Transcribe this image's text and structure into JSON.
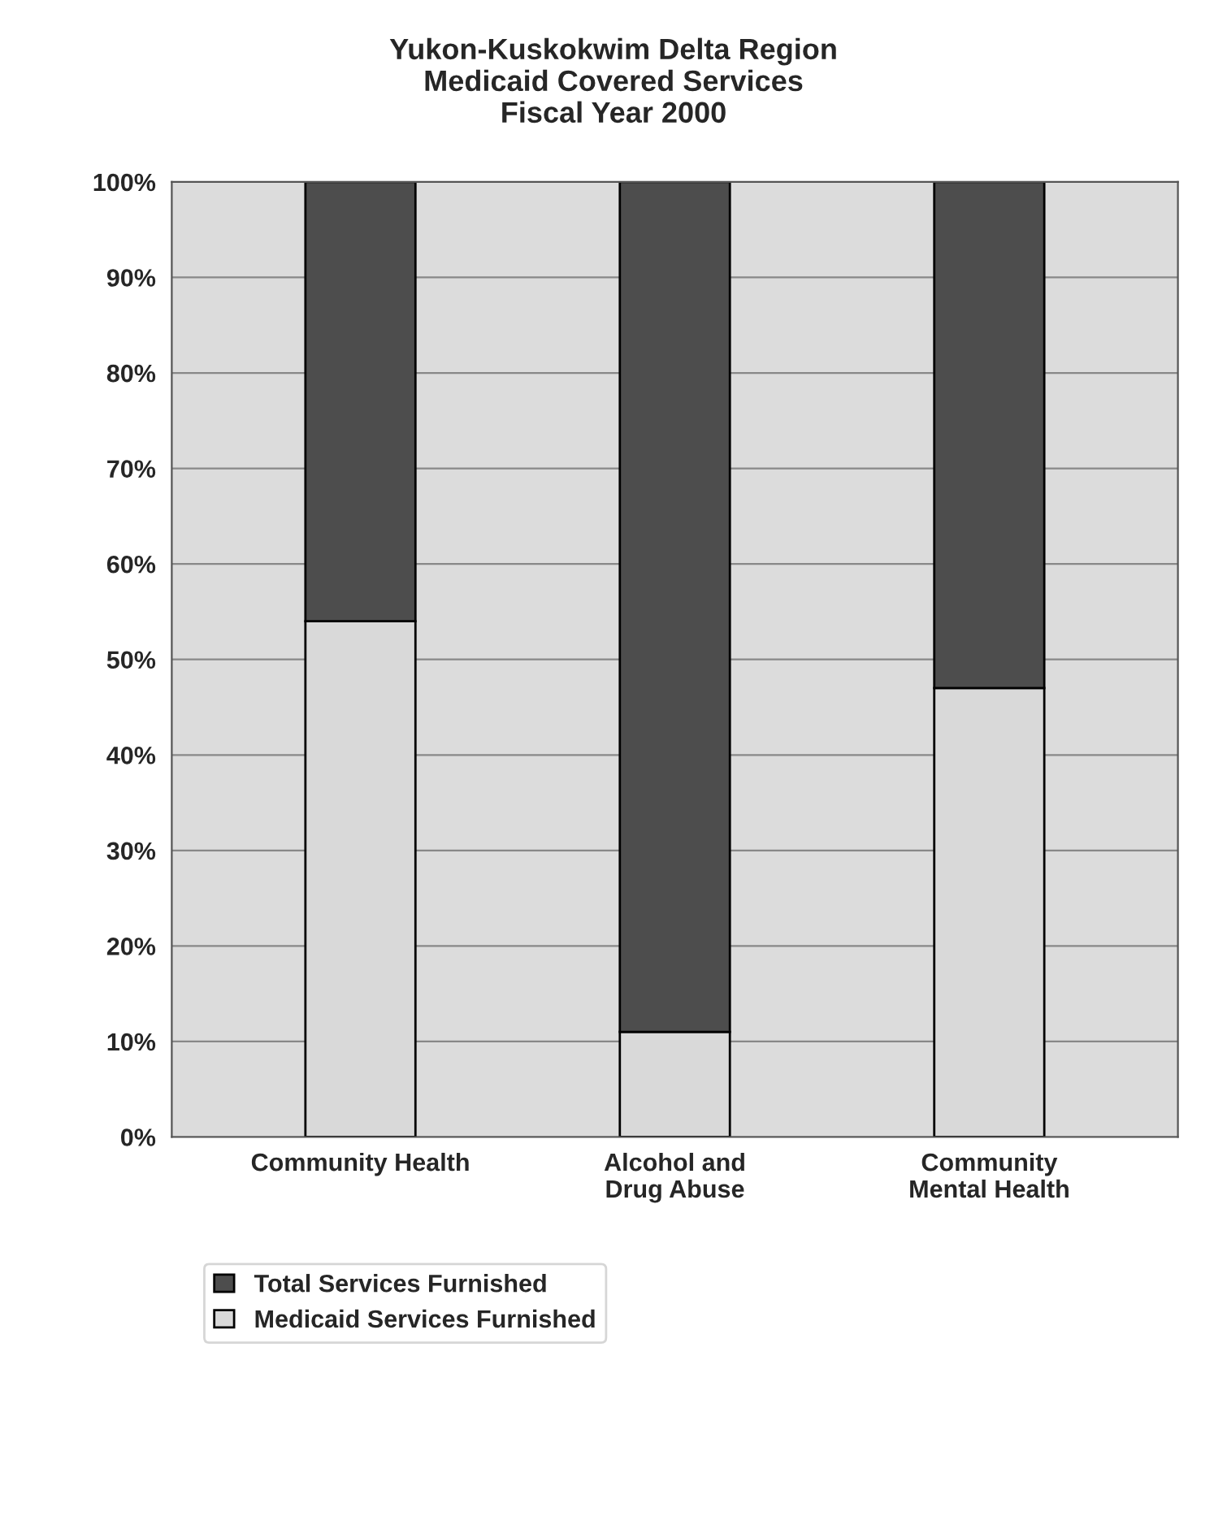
{
  "chart_data": {
    "type": "bar",
    "stacked": true,
    "title": "Yukon-Kuskokwim Delta Region\nMedicaid Covered Services\nFiscal Year 2000",
    "categories": [
      "Community Health",
      "Alcohol and Drug Abuse",
      "Community Mental Health"
    ],
    "series": [
      {
        "name": "Medicaid Services Furnished",
        "color": "#d9d9d9",
        "values": [
          54,
          11,
          47
        ]
      },
      {
        "name": "Total Services Furnished",
        "color": "#4d4d4d",
        "values": [
          46,
          89,
          53
        ]
      }
    ],
    "ylim": [
      0,
      100
    ],
    "yticks": [
      {
        "value": 0,
        "label": "0%"
      },
      {
        "value": 10,
        "label": "10%"
      },
      {
        "value": 20,
        "label": "20%"
      },
      {
        "value": 30,
        "label": "30%"
      },
      {
        "value": 40,
        "label": "40%"
      },
      {
        "value": 50,
        "label": "50%"
      },
      {
        "value": 60,
        "label": "60%"
      },
      {
        "value": 70,
        "label": "70%"
      },
      {
        "value": 80,
        "label": "80%"
      },
      {
        "value": 90,
        "label": "90%"
      },
      {
        "value": 100,
        "label": "100%"
      }
    ],
    "grid": "y",
    "legend": "bottom left"
  }
}
